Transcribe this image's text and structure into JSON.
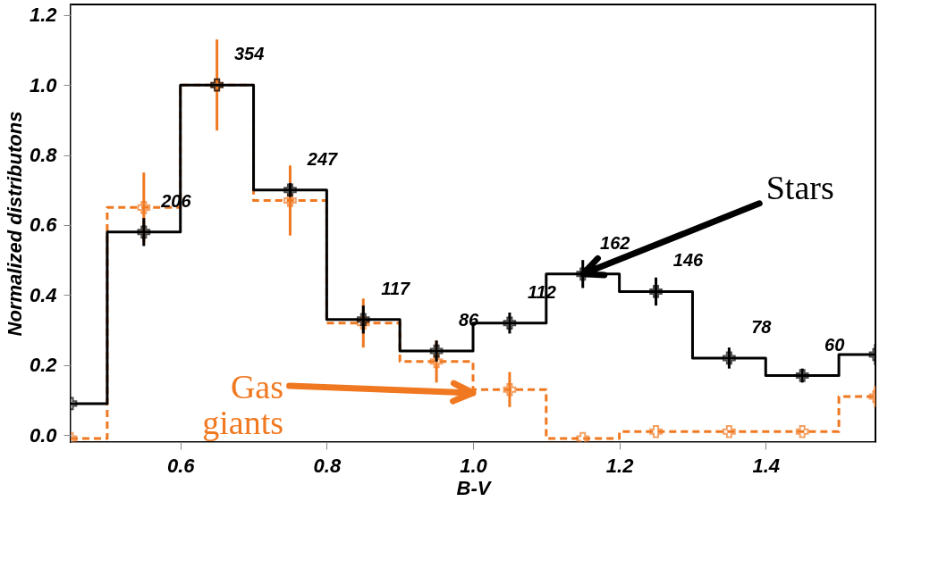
{
  "chart_data": {
    "type": "step",
    "x": [
      0.45,
      0.55,
      0.65,
      0.75,
      0.85,
      0.95,
      1.05,
      1.15,
      1.25,
      1.35,
      1.45,
      1.55
    ],
    "series": [
      {
        "color": "#000000",
        "line_style": "solid",
        "values": [
          0.09,
          0.58,
          1.0,
          0.7,
          0.33,
          0.24,
          0.32,
          0.46,
          0.41,
          0.22,
          0.17,
          0.23
        ],
        "errors": [
          null,
          0.04,
          null,
          0.02,
          0.04,
          0.03,
          0.03,
          0.04,
          0.04,
          0.03,
          0.02,
          0.03
        ]
      },
      {
        "color": "#f07820",
        "line_style": "dashed",
        "values": [
          -0.01,
          0.65,
          1.0,
          0.67,
          0.32,
          0.21,
          0.13,
          -0.01,
          0.01,
          0.01,
          0.01,
          0.11
        ],
        "errors": [
          null,
          0.1,
          0.13,
          0.1,
          0.07,
          0.06,
          0.05,
          null,
          null,
          null,
          null,
          0.03
        ]
      }
    ],
    "marker": "cross",
    "xlabel": "B-V",
    "ylabel": "Normalized distributons",
    "xlim": [
      0.45,
      1.55
    ],
    "ylim": [
      -0.02,
      1.23
    ],
    "xticks": [
      0.6,
      0.8,
      {
        "value": 1.0,
        "label": "1.0"
      },
      1.2,
      1.4
    ],
    "yticks": [
      {
        "value": 0,
        "label": "0.0"
      },
      0.2,
      0.4,
      0.6,
      0.8,
      {
        "value": 1.0,
        "label": "1.0"
      },
      1.2
    ],
    "annotations": [
      {
        "text": "206",
        "x": 0.55,
        "y": 0.58
      },
      {
        "text": "354",
        "x": 0.65,
        "y": 1.0
      },
      {
        "text": "247",
        "x": 0.75,
        "y": 0.7
      },
      {
        "text": "117",
        "x": 0.85,
        "y": 0.33
      },
      {
        "text": "86",
        "x": 0.95,
        "y": 0.24
      },
      {
        "text": "112",
        "x": 1.05,
        "y": 0.32
      },
      {
        "text": "162",
        "x": 1.15,
        "y": 0.46
      },
      {
        "text": "146",
        "x": 1.25,
        "y": 0.41
      },
      {
        "text": "78",
        "x": 1.35,
        "y": 0.22
      },
      {
        "text": "60",
        "x": 1.45,
        "y": 0.17
      },
      "Stars",
      "Gas giants"
    ],
    "grid": false
  }
}
